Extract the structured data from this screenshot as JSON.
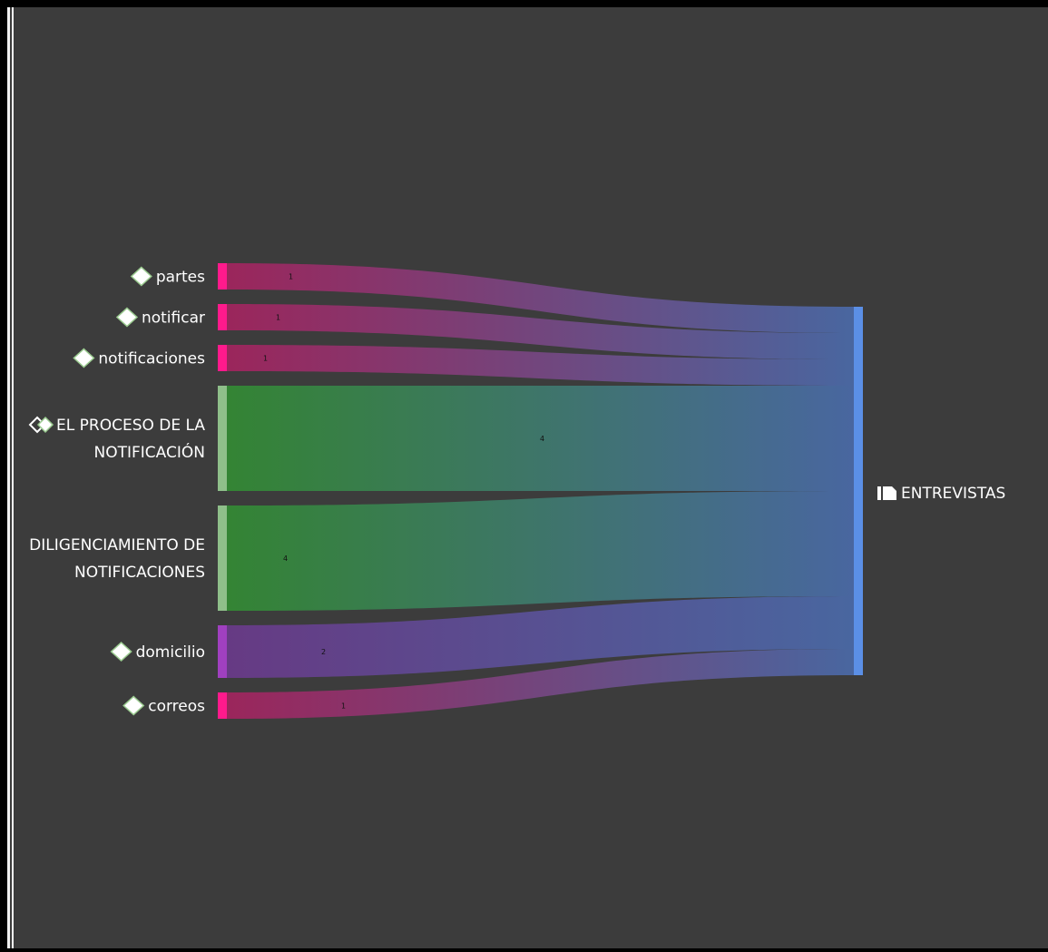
{
  "diagram": {
    "target": {
      "label": "ENTREVISTAS",
      "icon": "document-icon",
      "color": "#5b8fe6"
    },
    "links": [
      {
        "label": [
          "partes"
        ],
        "value": 1,
        "icon": "diamond-icon",
        "node_color": "#ff1a8c",
        "flow_color": "#a3245e"
      },
      {
        "label": [
          "notificar"
        ],
        "value": 1,
        "icon": "diamond-icon",
        "node_color": "#ff1a8c",
        "flow_color": "#a3245e"
      },
      {
        "label": [
          "notificaciones"
        ],
        "value": 1,
        "icon": "diamond-icon",
        "node_color": "#ff1a8c",
        "flow_color": "#a3245e"
      },
      {
        "label": [
          "EL PROCESO DE LA",
          "NOTIFICACIÓN"
        ],
        "value": 4,
        "icon": "double-diamond-icon",
        "node_color": "#8fbf8a",
        "flow_color": "#338a33"
      },
      {
        "label": [
          "DILIGENCIAMIENTO DE",
          "NOTIFICACIONES"
        ],
        "value": 4,
        "icon": "",
        "node_color": "#8fbf8a",
        "flow_color": "#338a33"
      },
      {
        "label": [
          "domicilio"
        ],
        "value": 2,
        "icon": "diamond-icon",
        "node_color": "#a040c0",
        "flow_color": "#6a3a8a"
      },
      {
        "label": [
          "correos"
        ],
        "value": 1,
        "icon": "diamond-icon",
        "node_color": "#ff1a8c",
        "flow_color": "#a3245e"
      }
    ]
  }
}
